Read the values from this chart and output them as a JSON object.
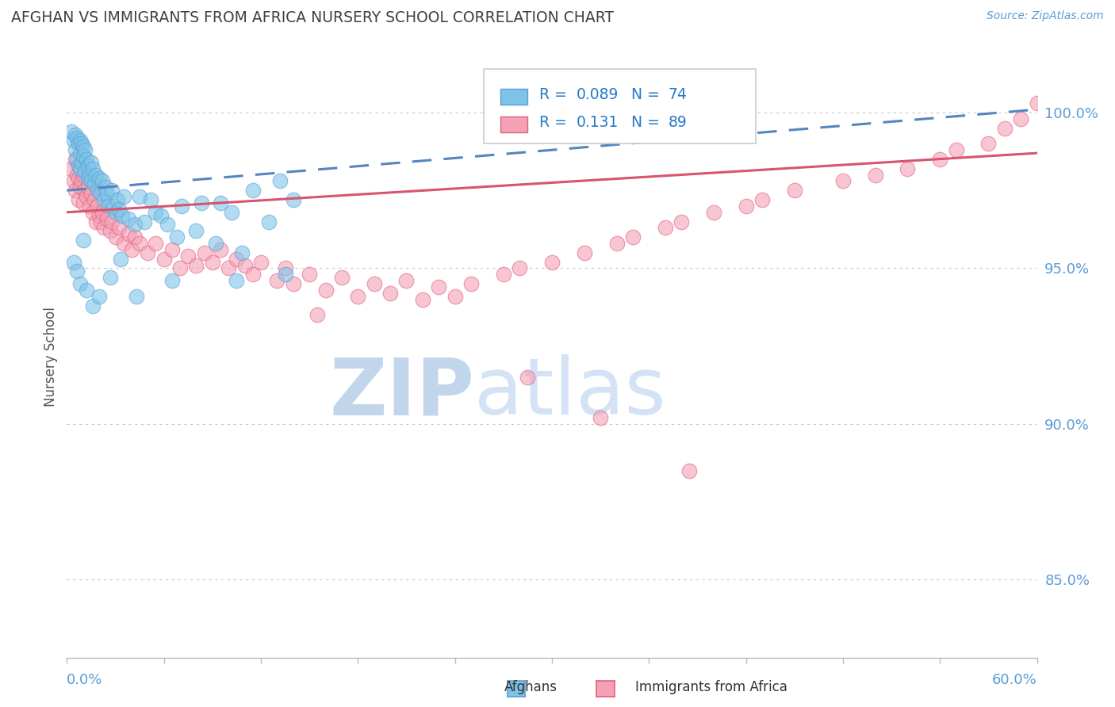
{
  "title": "AFGHAN VS IMMIGRANTS FROM AFRICA NURSERY SCHOOL CORRELATION CHART",
  "source": "Source: ZipAtlas.com",
  "ylabel": "Nursery School",
  "xmin": 0.0,
  "xmax": 60.0,
  "ymin": 82.5,
  "ymax": 101.8,
  "yticks": [
    85.0,
    90.0,
    95.0,
    100.0
  ],
  "blue_R": 0.089,
  "blue_N": 74,
  "pink_R": 0.131,
  "pink_N": 89,
  "blue_color": "#7dc3e8",
  "pink_color": "#f4a0b5",
  "blue_edge": "#5b9fd4",
  "pink_edge": "#e06080",
  "trend_blue_color": "#5585c0",
  "trend_pink_color": "#d9546e",
  "grid_color": "#c8c8c8",
  "axis_color": "#bbbbbb",
  "tick_label_color": "#5b9bd5",
  "title_color": "#404040",
  "watermark_zip_color": "#c5d8f0",
  "watermark_atlas_color": "#d8e8f8",
  "legend_color": "#2678c8",
  "blue_x": [
    0.3,
    0.4,
    0.5,
    0.5,
    0.6,
    0.6,
    0.7,
    0.7,
    0.8,
    0.8,
    0.8,
    0.9,
    0.9,
    1.0,
    1.0,
    1.1,
    1.1,
    1.2,
    1.3,
    1.3,
    1.4,
    1.5,
    1.5,
    1.6,
    1.7,
    1.8,
    1.9,
    2.0,
    2.1,
    2.2,
    2.3,
    2.4,
    2.5,
    2.6,
    2.8,
    2.9,
    3.0,
    3.1,
    3.2,
    3.4,
    3.5,
    3.8,
    4.2,
    4.5,
    4.8,
    5.2,
    5.5,
    5.8,
    6.2,
    6.8,
    7.1,
    8.0,
    8.3,
    9.2,
    9.5,
    10.2,
    10.8,
    11.5,
    12.5,
    13.2,
    14.0,
    0.4,
    0.6,
    0.8,
    1.0,
    1.2,
    1.6,
    2.0,
    2.7,
    3.3,
    4.3,
    6.5,
    10.5,
    13.5
  ],
  "blue_y": [
    99.4,
    99.1,
    99.3,
    98.8,
    99.2,
    98.5,
    99.0,
    98.3,
    99.1,
    98.7,
    98.2,
    99.0,
    98.4,
    98.9,
    98.6,
    98.1,
    98.8,
    98.5,
    98.3,
    97.9,
    98.0,
    98.4,
    97.8,
    98.2,
    97.7,
    98.0,
    97.5,
    97.9,
    97.4,
    97.8,
    97.2,
    97.6,
    97.4,
    97.0,
    97.5,
    97.0,
    96.8,
    97.2,
    96.9,
    96.7,
    97.3,
    96.6,
    96.4,
    97.3,
    96.5,
    97.2,
    96.8,
    96.7,
    96.4,
    96.0,
    97.0,
    96.2,
    97.1,
    95.8,
    97.1,
    96.8,
    95.5,
    97.5,
    96.5,
    97.8,
    97.2,
    95.2,
    94.9,
    94.5,
    95.9,
    94.3,
    93.8,
    94.1,
    94.7,
    95.3,
    94.1,
    94.6,
    94.6,
    94.8
  ],
  "pink_x": [
    0.3,
    0.4,
    0.5,
    0.5,
    0.6,
    0.7,
    0.7,
    0.8,
    0.8,
    0.9,
    1.0,
    1.0,
    1.1,
    1.2,
    1.3,
    1.4,
    1.5,
    1.6,
    1.7,
    1.8,
    1.9,
    2.0,
    2.1,
    2.2,
    2.3,
    2.5,
    2.7,
    2.8,
    3.0,
    3.2,
    3.5,
    3.8,
    4.0,
    4.2,
    4.5,
    5.0,
    5.5,
    6.0,
    6.5,
    7.0,
    7.5,
    8.0,
    8.5,
    9.0,
    9.5,
    10.0,
    10.5,
    11.0,
    11.5,
    12.0,
    13.0,
    13.5,
    14.0,
    15.0,
    16.0,
    17.0,
    18.0,
    19.0,
    20.0,
    21.0,
    22.0,
    23.0,
    24.0,
    25.0,
    27.0,
    28.0,
    30.0,
    32.0,
    34.0,
    35.0,
    37.0,
    38.0,
    40.0,
    42.0,
    43.0,
    45.0,
    48.0,
    50.0,
    52.0,
    54.0,
    55.0,
    57.0,
    58.0,
    59.0,
    60.0,
    15.5,
    28.5,
    33.0,
    38.5
  ],
  "pink_y": [
    98.2,
    97.8,
    98.5,
    97.5,
    98.0,
    97.9,
    97.2,
    98.3,
    97.6,
    97.8,
    98.0,
    97.1,
    97.5,
    97.3,
    97.6,
    97.0,
    97.4,
    96.8,
    97.2,
    96.5,
    97.0,
    96.7,
    96.5,
    96.8,
    96.3,
    96.6,
    96.2,
    96.5,
    96.0,
    96.3,
    95.8,
    96.1,
    95.6,
    96.0,
    95.8,
    95.5,
    95.8,
    95.3,
    95.6,
    95.0,
    95.4,
    95.1,
    95.5,
    95.2,
    95.6,
    95.0,
    95.3,
    95.1,
    94.8,
    95.2,
    94.6,
    95.0,
    94.5,
    94.8,
    94.3,
    94.7,
    94.1,
    94.5,
    94.2,
    94.6,
    94.0,
    94.4,
    94.1,
    94.5,
    94.8,
    95.0,
    95.2,
    95.5,
    95.8,
    96.0,
    96.3,
    96.5,
    96.8,
    97.0,
    97.2,
    97.5,
    97.8,
    98.0,
    98.2,
    98.5,
    98.8,
    99.0,
    99.5,
    99.8,
    100.3,
    93.5,
    91.5,
    90.2,
    88.5
  ]
}
